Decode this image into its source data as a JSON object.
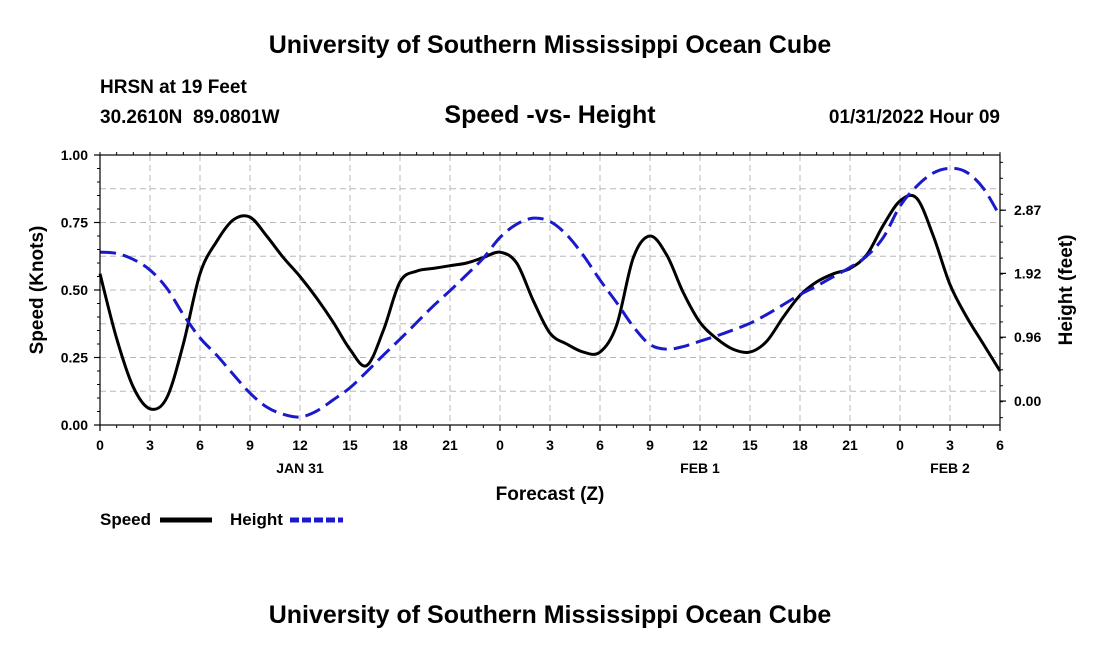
{
  "header": {
    "title": "University of Southern Mississippi Ocean Cube",
    "station": "HRSN at 19 Feet",
    "coords": "30.2610N  89.0801W",
    "subtitle": "Speed -vs- Height",
    "date": "01/31/2022 Hour 09"
  },
  "footer": {
    "title": "University of Southern Mississippi Ocean Cube"
  },
  "colors": {
    "speed": "#000000",
    "height": "#1a1acc",
    "grid": "#b8b8b8"
  },
  "chart_data": {
    "type": "line",
    "title": "Speed -vs- Height",
    "xlabel": "Forecast (Z)",
    "ylabel": "Speed (Knots)",
    "y2label": "Height (feet)",
    "xlim": [
      0,
      54
    ],
    "ylim": [
      0,
      1
    ],
    "y2lim": [
      -0.36,
      3.7
    ],
    "x_ticks": [
      0,
      3,
      6,
      9,
      12,
      15,
      18,
      21,
      24,
      27,
      30,
      33,
      36,
      39,
      42,
      45,
      48,
      51,
      54
    ],
    "x_tick_labels": [
      "0",
      "3",
      "6",
      "9",
      "12",
      "15",
      "18",
      "21",
      "0",
      "3",
      "6",
      "9",
      "12",
      "15",
      "18",
      "21",
      "0",
      "3",
      "6"
    ],
    "date_labels": [
      {
        "x": 12,
        "label": "JAN 31"
      },
      {
        "x": 36,
        "label": "FEB 1"
      },
      {
        "x": 51,
        "label": "FEB 2"
      }
    ],
    "y_ticks": [
      0,
      0.25,
      0.5,
      0.75,
      1.0
    ],
    "y_tick_labels": [
      "0.00",
      "0.25",
      "0.50",
      "0.75",
      "1.00"
    ],
    "y2_ticks": [
      0,
      0.96,
      1.92,
      2.87
    ],
    "y2_tick_labels": [
      "0.00",
      "0.96",
      "1.92",
      "2.87"
    ],
    "legend": [
      {
        "name": "Speed",
        "style": "solid"
      },
      {
        "name": "Height",
        "style": "dashed"
      }
    ],
    "series": [
      {
        "name": "Speed",
        "axis": "left",
        "x": [
          0,
          1,
          2,
          3,
          4,
          5,
          6,
          7,
          8,
          9,
          10,
          11,
          12,
          13,
          14,
          15,
          16,
          17,
          18,
          19,
          20,
          21,
          22,
          23,
          24,
          25,
          26,
          27,
          28,
          29,
          30,
          31,
          32,
          33,
          34,
          35,
          36,
          37,
          38,
          39,
          40,
          41,
          42,
          43,
          44,
          45,
          46,
          47,
          48,
          49,
          50,
          51,
          52,
          53,
          54
        ],
        "values": [
          0.56,
          0.32,
          0.14,
          0.06,
          0.1,
          0.3,
          0.56,
          0.68,
          0.76,
          0.77,
          0.7,
          0.62,
          0.55,
          0.47,
          0.38,
          0.28,
          0.22,
          0.35,
          0.53,
          0.57,
          0.58,
          0.59,
          0.6,
          0.62,
          0.64,
          0.6,
          0.46,
          0.34,
          0.3,
          0.27,
          0.27,
          0.37,
          0.62,
          0.7,
          0.63,
          0.49,
          0.38,
          0.32,
          0.28,
          0.27,
          0.31,
          0.4,
          0.48,
          0.53,
          0.56,
          0.58,
          0.63,
          0.74,
          0.83,
          0.84,
          0.7,
          0.52,
          0.4,
          0.3,
          0.2
        ]
      },
      {
        "name": "Height",
        "axis": "right",
        "x": [
          0,
          1,
          2,
          3,
          4,
          5,
          6,
          7,
          8,
          9,
          10,
          11,
          12,
          13,
          14,
          15,
          16,
          17,
          18,
          19,
          20,
          21,
          22,
          23,
          24,
          25,
          26,
          27,
          28,
          29,
          30,
          31,
          32,
          33,
          34,
          35,
          36,
          37,
          38,
          39,
          40,
          41,
          42,
          43,
          44,
          45,
          46,
          47,
          48,
          49,
          50,
          51,
          52,
          53,
          54
        ],
        "values": [
          2.24,
          2.22,
          2.13,
          1.97,
          1.7,
          1.3,
          0.95,
          0.69,
          0.4,
          0.12,
          -0.09,
          -0.2,
          -0.24,
          -0.15,
          0.02,
          0.2,
          0.44,
          0.69,
          0.93,
          1.18,
          1.43,
          1.66,
          1.9,
          2.15,
          2.46,
          2.66,
          2.75,
          2.7,
          2.5,
          2.19,
          1.82,
          1.48,
          1.12,
          0.85,
          0.78,
          0.82,
          0.9,
          0.98,
          1.07,
          1.17,
          1.3,
          1.45,
          1.6,
          1.73,
          1.87,
          2.01,
          2.18,
          2.46,
          2.93,
          3.23,
          3.43,
          3.5,
          3.44,
          3.2,
          2.78
        ]
      }
    ]
  }
}
